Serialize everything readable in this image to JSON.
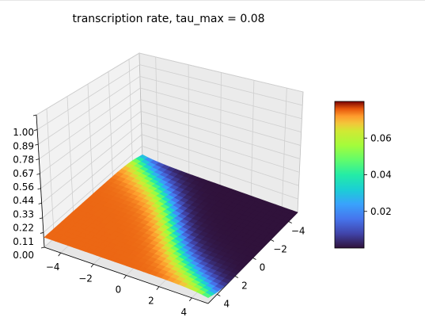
{
  "chart_data": {
    "type": "surface3d",
    "title": "transcription rate, tau_max = 0.08",
    "xlabel": "",
    "ylabel": "",
    "zlabel": "",
    "x_range": [
      -5,
      5
    ],
    "y_range": [
      -5,
      5
    ],
    "zlim": [
      0.0,
      1.0
    ],
    "x_ticks": [
      "−4",
      "−2",
      "0",
      "2",
      "4"
    ],
    "y_ticks": [
      "−4",
      "−2",
      "0",
      "2",
      "4"
    ],
    "z_ticks": [
      "0.00",
      "0.11",
      "0.22",
      "0.33",
      "0.44",
      "0.56",
      "0.67",
      "0.78",
      "0.89",
      "1.00"
    ],
    "colormap": "turbo",
    "colorbar": {
      "range": [
        0.0,
        0.08
      ],
      "ticks": [
        "0.02",
        "0.04",
        "0.06"
      ]
    },
    "surface_description": "sigmoidal transition: high (~0.075) for x+y < 0, low (~0.0) for x+y > 0",
    "grid": true
  }
}
